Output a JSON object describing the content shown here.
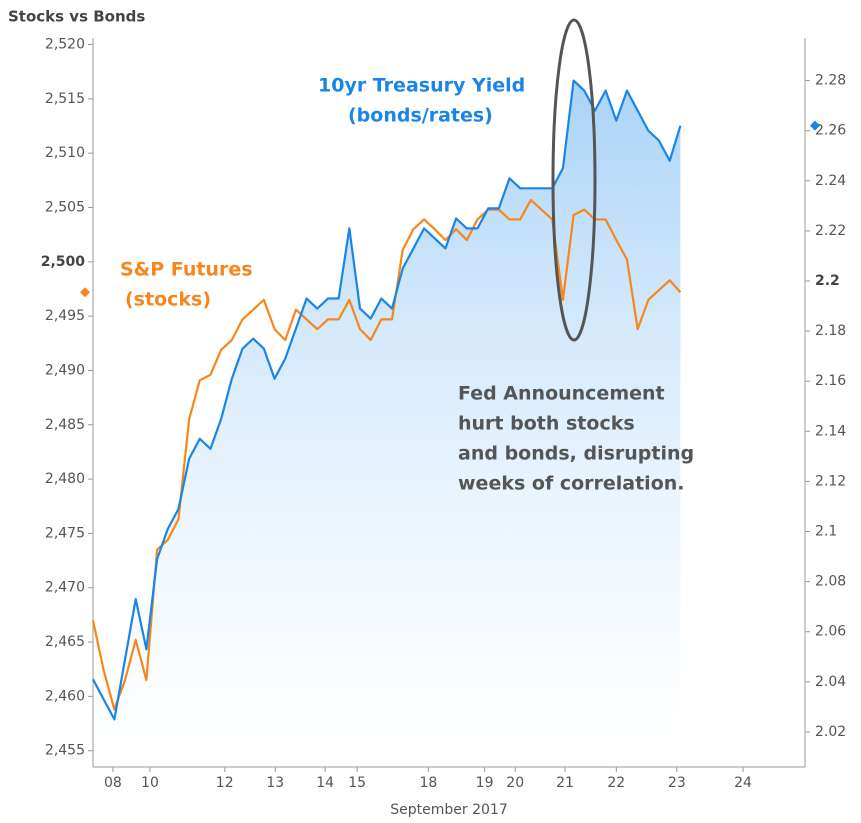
{
  "chart_data": {
    "type": "line",
    "title": "Stocks vs Bonds",
    "xlabel": "September 2017",
    "xlim": [
      0,
      100
    ],
    "xticks": [
      {
        "value": 2.8,
        "label": "08"
      },
      {
        "value": 8.0,
        "label": "10"
      },
      {
        "value": 18.5,
        "label": "12"
      },
      {
        "value": 25.6,
        "label": "13"
      },
      {
        "value": 32.6,
        "label": "14"
      },
      {
        "value": 37.1,
        "label": "15"
      },
      {
        "value": 47.1,
        "label": "18"
      },
      {
        "value": 55.0,
        "label": "19"
      },
      {
        "value": 59.3,
        "label": "20"
      },
      {
        "value": 66.3,
        "label": "21"
      },
      {
        "value": 73.5,
        "label": "22"
      },
      {
        "value": 82.0,
        "label": "23"
      },
      {
        "value": 91.3,
        "label": "24"
      }
    ],
    "ylim": [
      2453.5,
      2520.6
    ],
    "yticks": [
      {
        "value": 2455,
        "label": "2,455"
      },
      {
        "value": 2460,
        "label": "2,460"
      },
      {
        "value": 2465,
        "label": "2,465"
      },
      {
        "value": 2470,
        "label": "2,470"
      },
      {
        "value": 2475,
        "label": "2,475"
      },
      {
        "value": 2480,
        "label": "2,480"
      },
      {
        "value": 2485,
        "label": "2,485"
      },
      {
        "value": 2490,
        "label": "2,490"
      },
      {
        "value": 2495,
        "label": "2,495"
      },
      {
        "value": 2500,
        "label": "2,500"
      },
      {
        "value": 2505,
        "label": "2,505"
      },
      {
        "value": 2510,
        "label": "2,510"
      },
      {
        "value": 2515,
        "label": "2,515"
      },
      {
        "value": 2520,
        "label": "2,520"
      }
    ],
    "y2lim": [
      2.006,
      2.297
    ],
    "y2ticks": [
      2.02,
      2.04,
      2.06,
      2.08,
      2.1,
      2.12,
      2.14,
      2.16,
      2.18,
      2.2,
      2.22,
      2.24,
      2.26,
      2.28
    ],
    "x": [
      0,
      1.5,
      3,
      4.5,
      6,
      7.5,
      9,
      10.5,
      12,
      13.5,
      15,
      16.5,
      18,
      19.5,
      21,
      22.5,
      24,
      25.5,
      27,
      28.5,
      30,
      31.5,
      33,
      34.5,
      36,
      37.5,
      39,
      40.5,
      42,
      43.5,
      45,
      46.5,
      48,
      49.5,
      51,
      52.5,
      54,
      55.5,
      57,
      58.5,
      60,
      61.5,
      63,
      64.5,
      66,
      67.5,
      69,
      70.5,
      72,
      73.5,
      75,
      76.5,
      78,
      79.5,
      81,
      82.5
    ],
    "series": [
      {
        "name": "S&P Futures",
        "color": "#f7861d",
        "axis": "y",
        "values": [
          2467.0,
          2462.4,
          2458.8,
          2461.5,
          2465.2,
          2461.5,
          2473.5,
          2474.4,
          2476.3,
          2485.5,
          2489.1,
          2489.6,
          2491.9,
          2492.8,
          2494.7,
          2495.6,
          2496.5,
          2493.8,
          2492.8,
          2495.6,
          2494.7,
          2493.8,
          2494.7,
          2494.7,
          2496.5,
          2493.8,
          2492.8,
          2494.7,
          2494.7,
          2501.1,
          2503.0,
          2503.9,
          2503.0,
          2502.0,
          2503.0,
          2502.0,
          2503.9,
          2504.8,
          2504.8,
          2503.9,
          2503.9,
          2505.7,
          2504.8,
          2503.9,
          2496.5,
          2504.3,
          2504.8,
          2503.9,
          2503.9,
          2502.0,
          2500.2,
          2493.8,
          2496.5,
          2497.4,
          2498.3,
          2497.2
        ]
      },
      {
        "name": "10yr Treasury Yield",
        "color": "#1a85e8",
        "axis": "y2",
        "values": [
          2.041,
          2.033,
          2.025,
          2.049,
          2.073,
          2.053,
          2.089,
          2.101,
          2.109,
          2.129,
          2.137,
          2.133,
          2.145,
          2.161,
          2.173,
          2.177,
          2.173,
          2.161,
          2.169,
          2.181,
          2.193,
          2.189,
          2.193,
          2.193,
          2.221,
          2.189,
          2.185,
          2.193,
          2.189,
          2.205,
          2.213,
          2.221,
          2.217,
          2.213,
          2.225,
          2.221,
          2.221,
          2.229,
          2.229,
          2.241,
          2.237,
          2.237,
          2.237,
          2.237,
          2.245,
          2.28,
          2.276,
          2.268,
          2.276,
          2.264,
          2.276,
          2.268,
          2.26,
          2.256,
          2.248,
          2.262
        ]
      }
    ],
    "annotations": [
      {
        "lines": [
          "S&P Futures",
          "(stocks)"
        ]
      },
      {
        "lines": [
          "10yr Treasury Yield",
          "(bonds/rates)"
        ]
      },
      {
        "lines": [
          "Fed Announcement",
          "hurt both stocks",
          "and bonds, disrupting",
          "weeks of correlation."
        ]
      }
    ]
  }
}
